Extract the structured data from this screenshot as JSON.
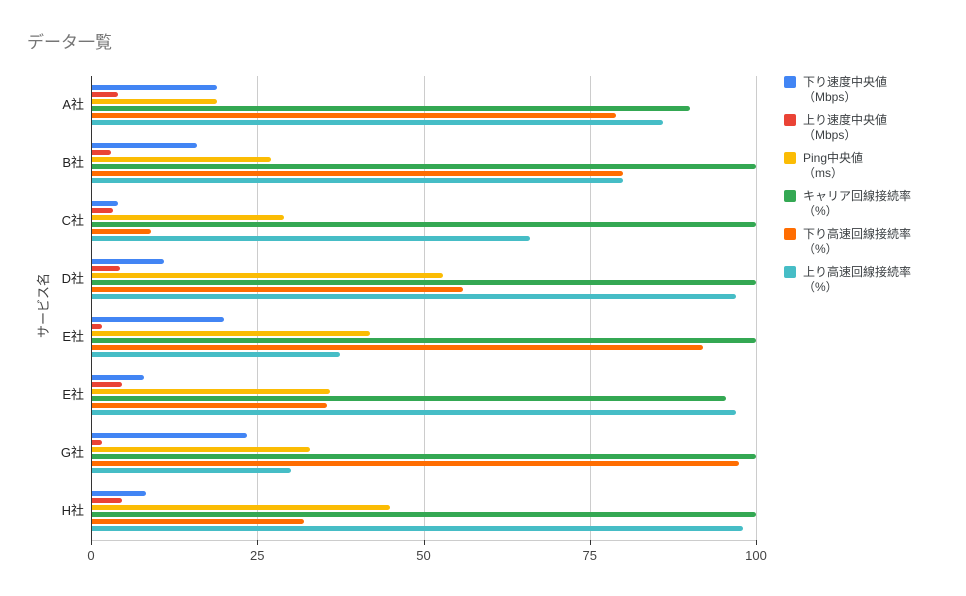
{
  "chart_data": {
    "type": "bar",
    "orientation": "horizontal",
    "title": "データ一覧",
    "xlabel": "",
    "ylabel": "サービス名",
    "xlim": [
      0,
      100
    ],
    "x_ticks": [
      0,
      25,
      50,
      75,
      100
    ],
    "grid": true,
    "legend_position": "right",
    "categories": [
      "A社",
      "B社",
      "C社",
      "D社",
      "E社",
      "E社",
      "G社",
      "H社"
    ],
    "series": [
      {
        "name": "下り速度中央値",
        "unit": "（Mbps）",
        "color": "#4285F4",
        "values": [
          19,
          16,
          4,
          11,
          20,
          8,
          23.5,
          8.2
        ]
      },
      {
        "name": "上り速度中央値",
        "unit": "（Mbps）",
        "color": "#EA4335",
        "values": [
          4,
          3,
          3.3,
          4.4,
          1.7,
          4.7,
          1.7,
          4.7
        ]
      },
      {
        "name": "Ping中央値",
        "unit": "（ms）",
        "color": "#FBBC04",
        "values": [
          19,
          27,
          29,
          53,
          42,
          36,
          33,
          45
        ]
      },
      {
        "name": "キャリア回線接続率",
        "unit": "（%）",
        "color": "#34A853",
        "values": [
          90,
          100,
          100,
          100,
          100,
          95.5,
          100,
          100
        ]
      },
      {
        "name": "下り高速回線接続率",
        "unit": "（%）",
        "color": "#FF6D01",
        "values": [
          79,
          80,
          9,
          56,
          92,
          35.5,
          97.5,
          32
        ]
      },
      {
        "name": "上り高速回線接続率",
        "unit": "（%）",
        "color": "#46BDC6",
        "values": [
          86,
          80,
          66,
          97,
          37.5,
          97,
          30,
          98
        ]
      }
    ],
    "colors": {
      "title_text": "#757575",
      "axis_text": "#444444",
      "category_text": "#222222",
      "gridline": "#cccccc",
      "axis_line": "#333333",
      "background": "#ffffff"
    }
  }
}
